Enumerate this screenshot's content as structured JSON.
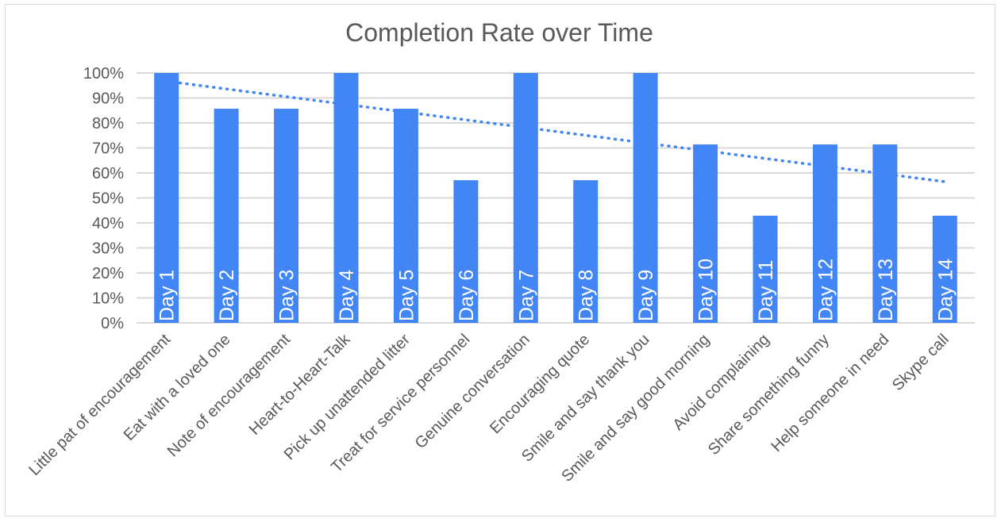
{
  "chart_data": {
    "type": "bar",
    "title": "Completion Rate over Time",
    "xlabel": "",
    "ylabel": "",
    "ylim": [
      0,
      100
    ],
    "y_ticks": [
      "0%",
      "10%",
      "20%",
      "30%",
      "40%",
      "50%",
      "60%",
      "70%",
      "80%",
      "90%",
      "100%"
    ],
    "categories": [
      "Little pat of encouragement",
      "Eat with a loved one",
      "Note of encouragement",
      "Heart-to-Heart-Talk",
      "Pick up unattended litter",
      "Treat for service personnel",
      "Genuine conversation",
      "Encouraging quote",
      "Smile and say thank you",
      "Smile and say good morning",
      "Avoid complaining",
      "Share something funny",
      "Help someone in need",
      "Skype call"
    ],
    "bar_labels": [
      "Day 1",
      "Day 2",
      "Day 3",
      "Day 4",
      "Day 5",
      "Day 6",
      "Day 7",
      "Day 8",
      "Day 9",
      "Day 10",
      "Day 11",
      "Day 12",
      "Day 13",
      "Day 14"
    ],
    "values": [
      100,
      85.7,
      85.7,
      100,
      85.7,
      57.1,
      100,
      57.1,
      100,
      71.4,
      42.9,
      71.4,
      71.4,
      42.9
    ],
    "trendline": {
      "type": "linear",
      "style": "dotted",
      "start": 96.7,
      "end": 56.5
    },
    "grid": true,
    "legend": "none",
    "colors": {
      "bar": "#4285f4",
      "trendline": "#4285f4",
      "grid": "#d9d9d9",
      "text": "#595959",
      "bar_label": "#ffffff"
    }
  }
}
